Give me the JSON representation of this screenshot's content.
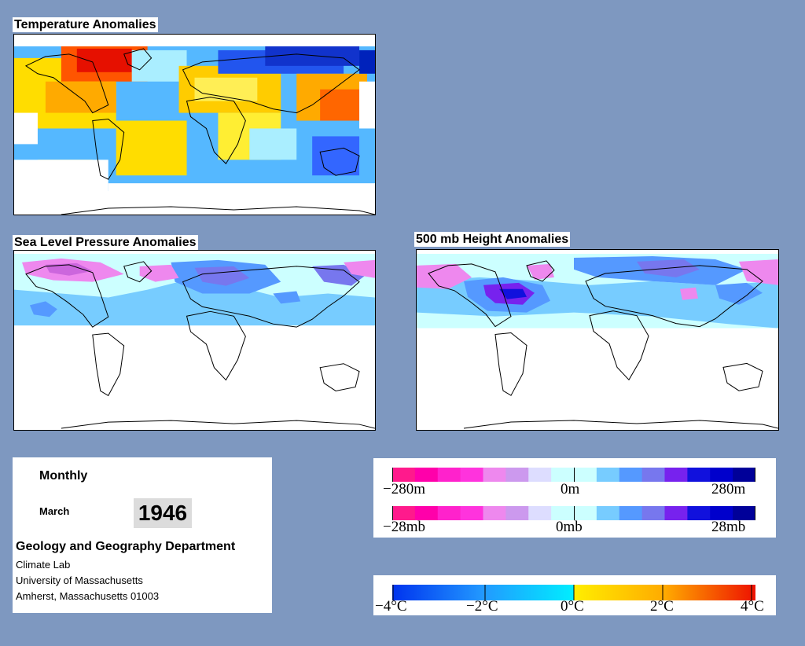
{
  "panels": {
    "temperature": {
      "title": "Temperature Anomalies"
    },
    "slp": {
      "title": "Sea Level Pressure Anomalies"
    },
    "height": {
      "title": "500 mb Height Anomalies"
    }
  },
  "info": {
    "mode": "Monthly",
    "month": "March",
    "year": "1946",
    "department": "Geology and Geography Department",
    "lab": "Climate Lab",
    "university": "University of Massachusetts",
    "address": "Amherst, Massachusetts 01003"
  },
  "legend_anomaly": {
    "colors": [
      "#ff1a8c",
      "#ff00aa",
      "#ff22cc",
      "#ff33dd",
      "#ee88ee",
      "#cc99ee",
      "#ddddff",
      "#ccffff",
      "#ccffff",
      "#77ccff",
      "#5599ff",
      "#7777ee",
      "#7722ee",
      "#1111dd",
      "#0000cc",
      "#000099"
    ],
    "height": {
      "min": "−280m",
      "mid": "0m",
      "max": "280m"
    },
    "pressure": {
      "min": "−28mb",
      "mid": "0mb",
      "max": "28mb"
    }
  },
  "legend_temperature": {
    "labels": [
      "−4°C",
      "−2°C",
      "0°C",
      "2°C",
      "4°C"
    ]
  }
}
